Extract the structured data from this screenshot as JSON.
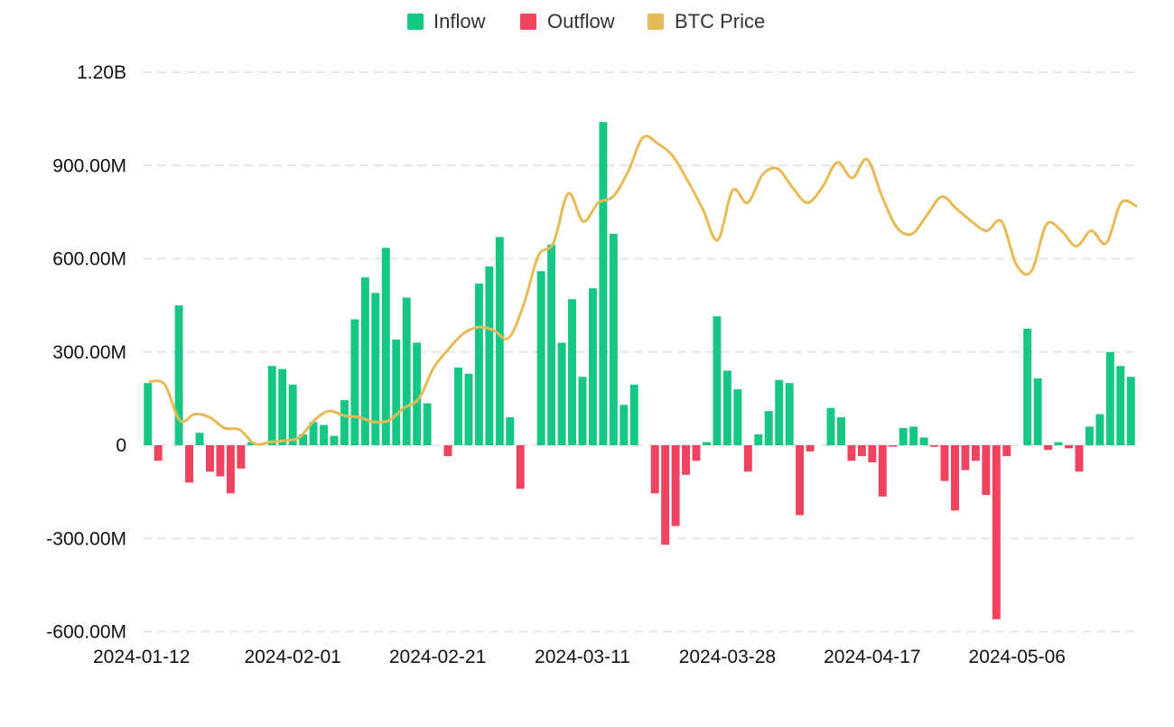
{
  "colors": {
    "inflow": "#16c784",
    "outflow": "#f0435f",
    "btc": "#e6bb56",
    "grid": "#e6e6e6",
    "text": "#111111"
  },
  "chart_data": {
    "type": "bar",
    "title": "",
    "xlabel": "",
    "ylabel": "",
    "legend": {
      "placement": "top-center",
      "entries": [
        "Inflow",
        "Outflow",
        "BTC Price"
      ]
    },
    "ylim": [
      -600000000,
      1200000000
    ],
    "y_ticks": [
      -600000000,
      -300000000,
      0,
      300000000,
      600000000,
      900000000,
      1200000000
    ],
    "y_tick_labels": [
      "-600.00M",
      "-300.00M",
      "0",
      "300.00M",
      "600.00M",
      "900.00M",
      "1.20B"
    ],
    "x_tick_labels": [
      "2024-01-12",
      "2024-02-01",
      "2024-02-21",
      "2024-03-11",
      "2024-03-28",
      "2024-04-17",
      "2024-05-06"
    ],
    "x_tick_bar_indices": [
      0,
      14,
      28,
      42,
      56,
      70,
      84
    ],
    "net_flow_values_m": [
      200,
      -50,
      0,
      450,
      -120,
      40,
      -85,
      -100,
      -155,
      -75,
      10,
      0,
      255,
      245,
      195,
      35,
      75,
      65,
      30,
      145,
      405,
      540,
      490,
      635,
      340,
      475,
      330,
      135,
      0,
      -35,
      250,
      230,
      520,
      575,
      670,
      90,
      -140,
      0,
      560,
      645,
      330,
      470,
      220,
      505,
      1040,
      680,
      130,
      195,
      0,
      -155,
      -320,
      -260,
      -95,
      -50,
      10,
      415,
      240,
      180,
      -85,
      35,
      110,
      210,
      200,
      -225,
      -20,
      0,
      120,
      90,
      -50,
      -35,
      -55,
      -165,
      -5,
      55,
      60,
      25,
      -5,
      -115,
      -210,
      -80,
      -50,
      -160,
      -560,
      -35,
      0,
      375,
      215,
      -15,
      10,
      -10,
      -85,
      60,
      100,
      300,
      255,
      220
    ],
    "btc_price_series_m": [
      205,
      195,
      80,
      100,
      90,
      55,
      50,
      5,
      10,
      15,
      25,
      80,
      110,
      95,
      90,
      75,
      80,
      120,
      150,
      250,
      310,
      360,
      380,
      370,
      345,
      450,
      610,
      650,
      810,
      720,
      780,
      800,
      880,
      990,
      970,
      930,
      850,
      760,
      660,
      820,
      780,
      870,
      890,
      830,
      780,
      830,
      910,
      860,
      920,
      800,
      700,
      680,
      740,
      800,
      760,
      720,
      690,
      720,
      580,
      560,
      710,
      690,
      640,
      690,
      650,
      780,
      770
    ]
  }
}
